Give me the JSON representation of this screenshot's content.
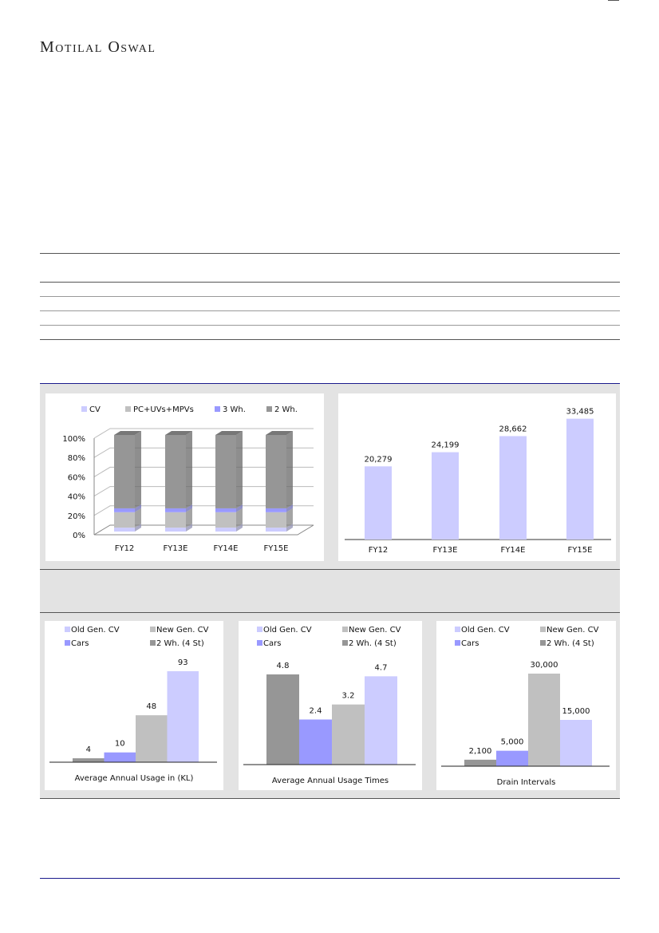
{
  "header": {
    "logo": "Motilal Oswal"
  },
  "colors": {
    "cv": "#ccccff",
    "pc": "#c0c0c0",
    "wh3": "#9999ff",
    "wh2": "#969696",
    "rule": "#1a1a8c"
  },
  "chart_data": [
    {
      "type": "bar",
      "stacked": true,
      "percent": true,
      "categories": [
        "FY12",
        "FY13E",
        "FY14E",
        "FY15E"
      ],
      "legend": [
        "CV",
        "PC+UVs+MPVs",
        "3 Wh.",
        "2 Wh."
      ],
      "series": [
        {
          "name": "CV",
          "values": [
            4,
            4,
            4,
            4
          ]
        },
        {
          "name": "PC+UVs+MPVs",
          "values": [
            16,
            16,
            16,
            16
          ]
        },
        {
          "name": "3 Wh.",
          "values": [
            4,
            4,
            4,
            4
          ]
        },
        {
          "name": "2 Wh.",
          "values": [
            76,
            76,
            76,
            76
          ]
        }
      ],
      "yticks": [
        "0%",
        "20%",
        "40%",
        "60%",
        "80%",
        "100%"
      ],
      "ylim": [
        0,
        100
      ]
    },
    {
      "type": "bar",
      "categories": [
        "FY12",
        "FY13E",
        "FY14E",
        "FY15E"
      ],
      "values": [
        20279,
        24199,
        28662,
        33485
      ],
      "labels": [
        "20,279",
        "24,199",
        "28,662",
        "33,485"
      ],
      "ylim": [
        0,
        36500
      ]
    },
    {
      "type": "bar",
      "xlabel": "Average Annual Usage in (KL)",
      "legend": [
        "Old Gen. CV",
        "New Gen. CV",
        "Cars",
        "2 Wh. (4 St)"
      ],
      "categories": [
        "2 Wh. (4 St)",
        "Cars",
        "New Gen. CV",
        "Old Gen. CV"
      ],
      "values": [
        4,
        10,
        48,
        93
      ],
      "labels": [
        "4",
        "10",
        "48",
        "93"
      ],
      "ylim": [
        0,
        93
      ]
    },
    {
      "type": "bar",
      "xlabel": "Average Annual Usage Times",
      "legend": [
        "Old Gen. CV",
        "New Gen. CV",
        "Cars",
        "2 Wh. (4 St)"
      ],
      "categories": [
        "2 Wh. (4 St)",
        "Cars",
        "New Gen. CV",
        "Old Gen. CV"
      ],
      "values": [
        4.8,
        2.4,
        3.2,
        4.7
      ],
      "labels": [
        "4.8",
        "2.4",
        "3.2",
        "4.7"
      ],
      "ylim": [
        0,
        4.8
      ]
    },
    {
      "type": "bar",
      "xlabel": "Drain Intervals",
      "legend": [
        "Old Gen. CV",
        "New Gen. CV",
        "Cars",
        "2 Wh. (4 St)"
      ],
      "categories": [
        "2 Wh. (4 St)",
        "Cars",
        "New Gen. CV",
        "Old Gen. CV"
      ],
      "values": [
        2100,
        5000,
        30000,
        15000
      ],
      "labels": [
        "2,100",
        "5,000",
        "30,000",
        "15,000"
      ],
      "ylim": [
        0,
        30000
      ]
    }
  ]
}
